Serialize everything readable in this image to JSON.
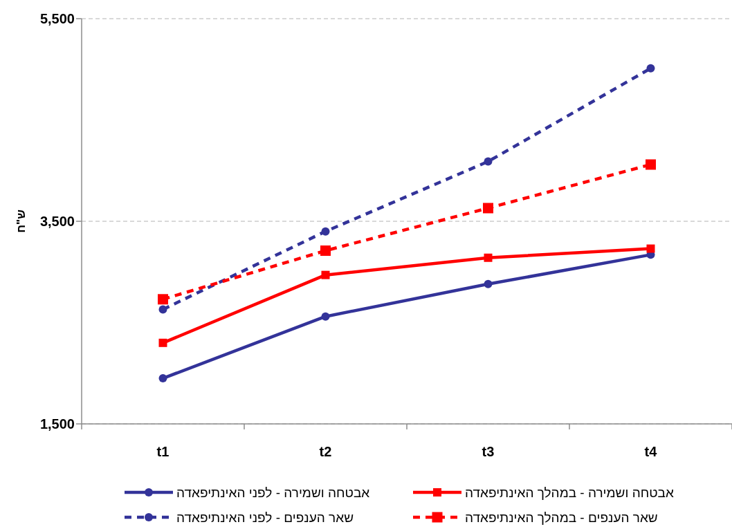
{
  "chart_data": {
    "type": "line",
    "ylabel": "ש\"ח",
    "categories": [
      "t1",
      "t2",
      "t3",
      "t4"
    ],
    "series": [
      {
        "name": "אבטחה ושמירה - לפני האינתיפאדה",
        "color": "#333399",
        "values": [
          1950,
          2560,
          2880,
          3170
        ],
        "marker": "circle",
        "line_style": "solid"
      },
      {
        "name": "אבטחה ושמירה - במהלך האינתיפאדה",
        "color": "#ff0000",
        "values": [
          2300,
          2970,
          3140,
          3230
        ],
        "marker": "square",
        "line_style": "solid"
      },
      {
        "name": "שאר הענפים - לפני האינתיפאדה",
        "color": "#333399",
        "values": [
          2630,
          3400,
          4090,
          5010
        ],
        "marker": "circle",
        "line_style": "dashed"
      },
      {
        "name": "שאר הענפים - במהלך האינתיפאדה",
        "color": "#ff0000",
        "values": [
          2730,
          3210,
          3630,
          4060
        ],
        "marker": "square",
        "line_style": "dashed"
      }
    ],
    "ylim": [
      1500,
      5500
    ],
    "yticks": [
      {
        "value": 1500,
        "label": "1,500"
      },
      {
        "value": 3500,
        "label": "3,500"
      },
      {
        "value": 5500,
        "label": "5,500"
      }
    ],
    "grid": "y",
    "legend": "bottom"
  }
}
